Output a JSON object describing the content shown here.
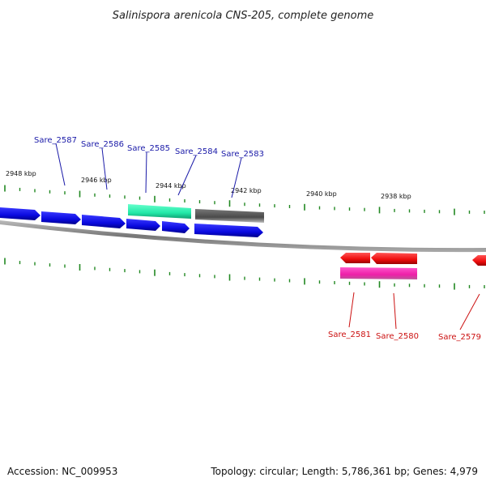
{
  "title": "Salinispora arenicola CNS-205, complete genome",
  "footer": {
    "accession": "Accession: NC_009953",
    "summary": "Topology: circular; Length: 5,786,361 bp; Genes: 4,979"
  },
  "scale_labels": [
    "2948 kbp",
    "2946 kbp",
    "2944 kbp",
    "2942 kbp",
    "2940 kbp",
    "2938 kbp"
  ],
  "gene_labels_top": [
    "Sare_2587",
    "Sare_2586",
    "Sare_2585",
    "Sare_2584",
    "Sare_2583"
  ],
  "gene_labels_bottom": [
    "Sare_2581",
    "Sare_2580",
    "Sare_2579"
  ],
  "colors": {
    "forward_gene": "#1010e8",
    "highlight_gene": "#33eeaa",
    "other_gene": "#555555",
    "reverse_gene": "#ee1111",
    "reverse_feature": "#ee22aa",
    "tick": "#228822",
    "backbone": "#888888",
    "label_top": "#1a1aa8",
    "label_bottom": "#cc1111"
  }
}
